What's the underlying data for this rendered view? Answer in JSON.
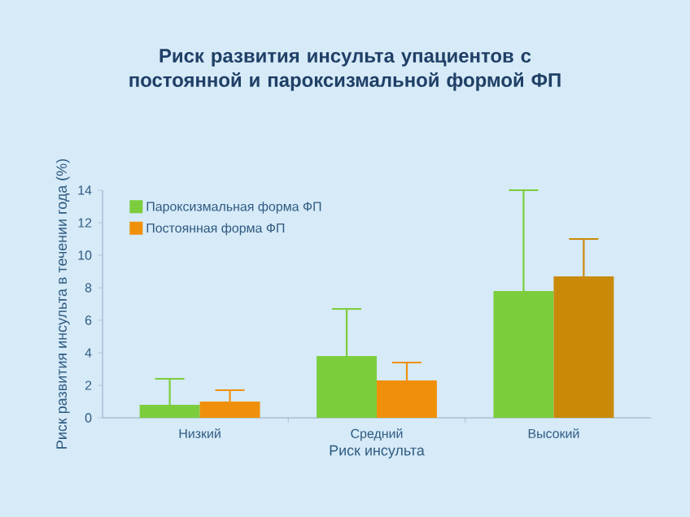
{
  "chart_data": {
    "type": "bar",
    "title": "Риск развития инсульта упациентов с постоянной и пароксизмальной формой ФП",
    "xlabel": "Риск инсульта",
    "ylabel": "Риск развития инсульта в течении года (%)",
    "categories": [
      "Низкий",
      "Средний",
      "Высокий"
    ],
    "series": [
      {
        "name": "Пароксизмальная форма ФП",
        "color": "#7ccd3c",
        "colors": [
          "#7ccd3c",
          "#7ccd3c",
          "#7ccd3c"
        ],
        "values": [
          0.8,
          3.8,
          7.8
        ],
        "errors": [
          [
            0.8,
            2.4
          ],
          [
            3.8,
            6.7
          ],
          [
            7.8,
            14.0
          ]
        ]
      },
      {
        "name": "Постоянная форма ФП",
        "color": "#f0900a",
        "colors": [
          "#f0900a",
          "#f0900a",
          "#c98a0a"
        ],
        "values": [
          1.0,
          2.3,
          8.7
        ],
        "errors": [
          [
            1.0,
            1.7
          ],
          [
            2.3,
            3.4
          ],
          [
            8.7,
            11.0
          ]
        ]
      }
    ],
    "ylim": [
      0,
      14
    ],
    "yticks": [
      0,
      2,
      4,
      6,
      8,
      10,
      12,
      14
    ],
    "legend": "top left"
  }
}
